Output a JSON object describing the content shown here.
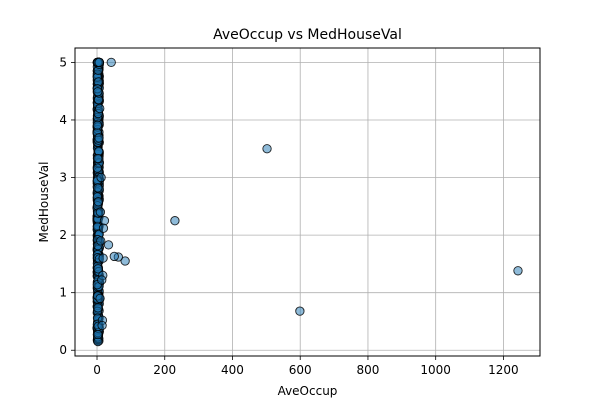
{
  "chart_data": {
    "type": "scatter",
    "title": "AveOccup vs MedHouseVal",
    "xlabel": "AveOccup",
    "ylabel": "MedHouseVal",
    "xlim": [
      -65,
      1308
    ],
    "ylim": [
      -0.1,
      5.25
    ],
    "xticks": [
      0,
      200,
      400,
      600,
      800,
      1000,
      1200
    ],
    "yticks": [
      0,
      1,
      2,
      3,
      4,
      5
    ],
    "grid": true,
    "colors": {
      "point_fill": "#1f77b4",
      "point_edge": "#000000",
      "grid": "#b0b0b0",
      "axes": "#000000"
    },
    "outliers": [
      {
        "x": 1243,
        "y": 1.38
      },
      {
        "x": 599,
        "y": 0.68
      },
      {
        "x": 502,
        "y": 3.5
      },
      {
        "x": 230,
        "y": 2.25
      },
      {
        "x": 42,
        "y": 5.0
      },
      {
        "x": 83,
        "y": 1.55
      },
      {
        "x": 63,
        "y": 1.62
      },
      {
        "x": 51,
        "y": 1.63
      },
      {
        "x": 34,
        "y": 1.83
      },
      {
        "x": 22,
        "y": 2.25
      },
      {
        "x": 19,
        "y": 2.12
      },
      {
        "x": 18,
        "y": 1.6
      },
      {
        "x": 17,
        "y": 1.3
      },
      {
        "x": 16,
        "y": 0.52
      },
      {
        "x": 15,
        "y": 0.43
      },
      {
        "x": 14,
        "y": 1.22
      },
      {
        "x": 12,
        "y": 3.0
      },
      {
        "x": 11,
        "y": 1.9
      },
      {
        "x": 10,
        "y": 2.4
      },
      {
        "x": 9,
        "y": 0.9
      },
      {
        "x": 8,
        "y": 4.2
      }
    ],
    "dense_cluster": {
      "x_range": [
        0.7,
        7.0
      ],
      "y_range": [
        0.15,
        5.0
      ],
      "capped_value": 5.0
    }
  }
}
